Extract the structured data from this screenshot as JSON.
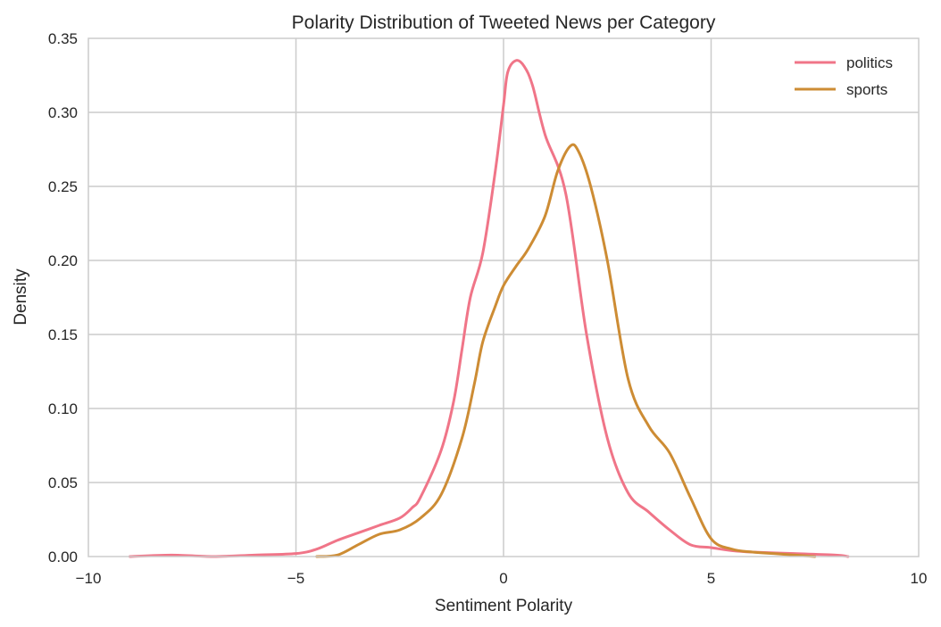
{
  "chart_data": {
    "type": "line",
    "title": "Polarity Distribution of Tweeted News per Category",
    "xlabel": "Sentiment Polarity",
    "ylabel": "Density",
    "xlim": [
      -10,
      10
    ],
    "ylim": [
      0,
      0.35
    ],
    "xticks": [
      -10,
      -5,
      0,
      5,
      10
    ],
    "xtick_labels": [
      "−10",
      "−5",
      "0",
      "5",
      "10"
    ],
    "yticks": [
      0,
      0.05,
      0.1,
      0.15,
      0.2,
      0.25,
      0.3,
      0.35
    ],
    "ytick_labels": [
      "0.00",
      "0.05",
      "0.10",
      "0.15",
      "0.20",
      "0.25",
      "0.30",
      "0.35"
    ],
    "grid": true,
    "legend_position": "top-right",
    "series": [
      {
        "name": "politics",
        "color": "#f07588",
        "x": [
          -9.0,
          -8.0,
          -7.0,
          -6.0,
          -5.0,
          -4.5,
          -4.0,
          -3.5,
          -3.0,
          -2.5,
          -2.2,
          -2.0,
          -1.5,
          -1.2,
          -1.0,
          -0.8,
          -0.5,
          -0.2,
          0.0,
          0.1,
          0.3,
          0.5,
          0.7,
          1.0,
          1.5,
          2.0,
          2.5,
          3.0,
          3.5,
          4.0,
          4.5,
          5.0,
          5.5,
          6.0,
          7.0,
          8.0,
          8.3
        ],
        "y": [
          0.0,
          0.001,
          0.0,
          0.001,
          0.002,
          0.005,
          0.011,
          0.016,
          0.021,
          0.026,
          0.033,
          0.04,
          0.072,
          0.105,
          0.14,
          0.175,
          0.205,
          0.26,
          0.305,
          0.327,
          0.335,
          0.331,
          0.318,
          0.285,
          0.245,
          0.15,
          0.08,
          0.043,
          0.03,
          0.018,
          0.008,
          0.006,
          0.004,
          0.003,
          0.002,
          0.001,
          0.0
        ]
      },
      {
        "name": "sports",
        "color": "#cd8c34",
        "x": [
          -4.5,
          -4.0,
          -3.5,
          -3.0,
          -2.5,
          -2.0,
          -1.5,
          -1.0,
          -0.7,
          -0.5,
          -0.2,
          0.0,
          0.3,
          0.6,
          1.0,
          1.3,
          1.6,
          1.8,
          2.1,
          2.5,
          3.0,
          3.5,
          4.0,
          4.5,
          5.0,
          5.5,
          6.0,
          6.5,
          7.5
        ],
        "y": [
          0.0,
          0.001,
          0.008,
          0.015,
          0.018,
          0.026,
          0.042,
          0.08,
          0.117,
          0.145,
          0.169,
          0.183,
          0.196,
          0.208,
          0.23,
          0.26,
          0.277,
          0.274,
          0.25,
          0.2,
          0.12,
          0.088,
          0.07,
          0.04,
          0.012,
          0.005,
          0.003,
          0.002,
          0.0
        ]
      }
    ]
  }
}
